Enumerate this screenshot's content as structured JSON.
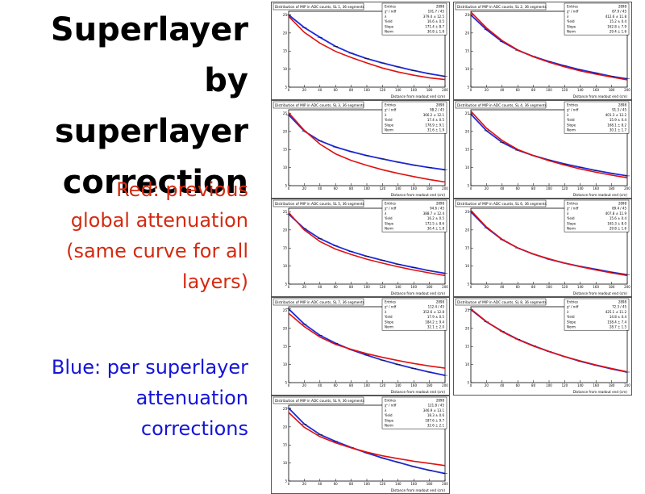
{
  "slide": {
    "title": "Superlayer by\nsuperlayer\ncorrection",
    "red_note": "Red: previous\nglobal attenuation\n(same curve for all\nlayers)",
    "blue_note": "Blue: per superlayer\nattenuation\ncorrections"
  },
  "colors": {
    "data_series": "#1f2bd6",
    "global_curve": "#e01010",
    "title_text": "#000000",
    "red_text": "#d42a10",
    "blue_text": "#1414d8"
  },
  "chart_data": [
    {
      "type": "line",
      "title": "Distribution of MIP in ADC counts, SL 1, 36 segments",
      "xlabel": "Distance from readout end (cm)",
      "stats": [
        [
          "Entries",
          "2898"
        ],
        [
          "χ² / ndf",
          "101.7 / 45"
        ],
        [
          "λ",
          "379.4 ± 12.5"
        ],
        [
          "Yield",
          "16.6 ± 0.5"
        ],
        [
          "Slope",
          "171.4 ± 8.7"
        ],
        [
          "Norm",
          "30.8 ± 1.8"
        ]
      ],
      "series": [
        {
          "name": "blue",
          "x": [
            0,
            20,
            40,
            60,
            80,
            100,
            120,
            140,
            160,
            180,
            200
          ],
          "y": [
            25,
            21.5,
            18.8,
            16.3,
            14.4,
            12.9,
            11.7,
            10.6,
            9.6,
            8.7,
            8.0
          ]
        },
        {
          "name": "red",
          "x": [
            0,
            20,
            40,
            60,
            80,
            100,
            120,
            140,
            160,
            180,
            200
          ],
          "y": [
            24.6,
            20.2,
            17.2,
            14.9,
            13.2,
            11.7,
            10.3,
            9.2,
            8.3,
            7.6,
            7.1
          ]
        }
      ]
    },
    {
      "type": "line",
      "title": "Distribution of MIP in ADC counts, SL 2, 36 segments",
      "xlabel": "Distance from readout end (cm)",
      "stats": [
        [
          "Entries",
          "2898"
        ],
        [
          "χ² / ndf",
          "87.9 / 45"
        ],
        [
          "λ",
          "412.6 ± 11.8"
        ],
        [
          "Yield",
          "15.2 ± 0.4"
        ],
        [
          "Slope",
          "162.8 ± 7.9"
        ],
        [
          "Norm",
          "29.4 ± 1.6"
        ]
      ],
      "series": [
        {
          "name": "blue",
          "x": [
            0,
            20,
            40,
            60,
            80,
            100,
            120,
            140,
            160,
            180,
            200
          ],
          "y": [
            25,
            20.9,
            17.6,
            15.2,
            13.5,
            12.1,
            10.9,
            9.8,
            8.9,
            8.0,
            7.3
          ]
        },
        {
          "name": "red",
          "x": [
            0,
            20,
            40,
            60,
            80,
            100,
            120,
            140,
            160,
            180,
            200
          ],
          "y": [
            25.8,
            21.4,
            17.9,
            15.3,
            13.4,
            11.9,
            10.6,
            9.5,
            8.6,
            7.8,
            7.0
          ]
        }
      ]
    },
    {
      "type": "line",
      "title": "Distribution of MIP in ADC counts, SL 3, 36 segments",
      "xlabel": "Distance from readout end (cm)",
      "stats": [
        [
          "Entries",
          "2898"
        ],
        [
          "χ² / ndf",
          "98.2 / 45"
        ],
        [
          "λ",
          "366.2 ± 12.1"
        ],
        [
          "Yield",
          "17.4 ± 0.5"
        ],
        [
          "Slope",
          "178.9 ± 9.1"
        ],
        [
          "Norm",
          "31.6 ± 1.9"
        ]
      ],
      "series": [
        {
          "name": "blue",
          "x": [
            0,
            20,
            40,
            60,
            80,
            100,
            120,
            140,
            160,
            180,
            200
          ],
          "y": [
            24.6,
            20.1,
            17.4,
            15.7,
            14.4,
            13.3,
            12.4,
            11.5,
            10.7,
            10.0,
            9.4
          ]
        },
        {
          "name": "red",
          "x": [
            0,
            20,
            40,
            60,
            80,
            100,
            120,
            140,
            160,
            180,
            200
          ],
          "y": [
            25.2,
            20.3,
            16.5,
            13.8,
            12.0,
            10.6,
            9.4,
            8.4,
            7.5,
            6.7,
            6.0
          ]
        }
      ]
    },
    {
      "type": "line",
      "title": "Distribution of MIP in ADC counts, SL 4, 36 segments",
      "xlabel": "Distance from readout end (cm)",
      "stats": [
        [
          "Entries",
          "2898"
        ],
        [
          "χ² / ndf",
          "91.3 / 45"
        ],
        [
          "λ",
          "401.3 ± 12.2"
        ],
        [
          "Yield",
          "15.9 ± 0.4"
        ],
        [
          "Slope",
          "168.1 ± 8.2"
        ],
        [
          "Norm",
          "30.1 ± 1.7"
        ]
      ],
      "series": [
        {
          "name": "blue",
          "x": [
            0,
            20,
            40,
            60,
            80,
            100,
            120,
            140,
            160,
            180,
            200
          ],
          "y": [
            24.8,
            20.2,
            17.0,
            14.8,
            13.3,
            12.1,
            11.0,
            10.1,
            9.2,
            8.4,
            7.7
          ]
        },
        {
          "name": "red",
          "x": [
            0,
            20,
            40,
            60,
            80,
            100,
            120,
            140,
            160,
            180,
            200
          ],
          "y": [
            25.6,
            20.9,
            17.5,
            15.0,
            13.3,
            11.9,
            10.7,
            9.6,
            8.7,
            7.9,
            7.2
          ]
        }
      ]
    },
    {
      "type": "line",
      "title": "Distribution of MIP in ADC counts, SL 5, 36 segments",
      "xlabel": "Distance from readout end (cm)",
      "stats": [
        [
          "Entries",
          "2898"
        ],
        [
          "χ² / ndf",
          "94.6 / 45"
        ],
        [
          "λ",
          "388.7 ± 12.4"
        ],
        [
          "Yield",
          "16.2 ± 0.5"
        ],
        [
          "Slope",
          "172.5 ± 8.6"
        ],
        [
          "Norm",
          "30.4 ± 1.8"
        ]
      ],
      "series": [
        {
          "name": "blue",
          "x": [
            0,
            20,
            40,
            60,
            80,
            100,
            120,
            140,
            160,
            180,
            200
          ],
          "y": [
            24.4,
            20.4,
            17.6,
            15.6,
            14.0,
            12.7,
            11.6,
            10.5,
            9.6,
            8.7,
            8.0
          ]
        },
        {
          "name": "red",
          "x": [
            0,
            20,
            40,
            60,
            80,
            100,
            120,
            140,
            160,
            180,
            200
          ],
          "y": [
            24.8,
            20.0,
            16.8,
            14.7,
            13.2,
            11.9,
            10.8,
            9.8,
            8.9,
            8.1,
            7.4
          ]
        }
      ]
    },
    {
      "type": "line",
      "title": "Distribution of MIP in ADC counts, SL 6, 36 segments",
      "xlabel": "Distance from readout end (cm)",
      "stats": [
        [
          "Entries",
          "2898"
        ],
        [
          "χ² / ndf",
          "89.4 / 45"
        ],
        [
          "λ",
          "407.8 ± 11.9"
        ],
        [
          "Yield",
          "15.6 ± 0.4"
        ],
        [
          "Slope",
          "165.3 ± 8.0"
        ],
        [
          "Norm",
          "29.8 ± 1.6"
        ]
      ],
      "series": [
        {
          "name": "blue",
          "x": [
            0,
            20,
            40,
            60,
            80,
            100,
            120,
            140,
            160,
            180,
            200
          ],
          "y": [
            25.0,
            20.6,
            17.3,
            15.0,
            13.3,
            11.9,
            10.8,
            9.9,
            9.1,
            8.3,
            7.6
          ]
        },
        {
          "name": "red",
          "x": [
            0,
            20,
            40,
            60,
            80,
            100,
            120,
            140,
            160,
            180,
            200
          ],
          "y": [
            25.4,
            20.8,
            17.4,
            15.0,
            13.3,
            12.0,
            10.8,
            9.8,
            8.9,
            8.1,
            7.4
          ]
        }
      ]
    },
    {
      "type": "line",
      "title": "Distribution of MIP in ADC counts, SL 7, 36 segments",
      "xlabel": "Distance from readout end (cm)",
      "stats": [
        [
          "Entries",
          "2898"
        ],
        [
          "χ² / ndf",
          "112.4 / 45"
        ],
        [
          "λ",
          "352.6 ± 12.8"
        ],
        [
          "Yield",
          "17.9 ± 0.5"
        ],
        [
          "Slope",
          "184.2 ± 9.4"
        ],
        [
          "Norm",
          "32.1 ± 2.0"
        ]
      ],
      "series": [
        {
          "name": "blue",
          "x": [
            0,
            20,
            40,
            60,
            80,
            100,
            120,
            140,
            160,
            180,
            200
          ],
          "y": [
            25.4,
            21.2,
            18.1,
            15.9,
            14.1,
            12.6,
            11.2,
            10.0,
            8.9,
            7.9,
            7.0
          ]
        },
        {
          "name": "red",
          "x": [
            0,
            20,
            40,
            60,
            80,
            100,
            120,
            140,
            160,
            180,
            200
          ],
          "y": [
            24.2,
            20.5,
            17.6,
            15.6,
            14.2,
            13.0,
            12.0,
            11.1,
            10.3,
            9.6,
            9.0
          ]
        }
      ]
    },
    {
      "type": "line",
      "title": "Distribution of MIP in ADC counts, SL 8, 36 segments",
      "xlabel": "Distance from readout end (cm)",
      "stats": [
        [
          "Entries",
          "2898"
        ],
        [
          "χ² / ndf",
          "72.3 / 45"
        ],
        [
          "λ",
          "425.1 ± 11.2"
        ],
        [
          "Yield",
          "14.8 ± 0.4"
        ],
        [
          "Slope",
          "158.4 ± 7.4"
        ],
        [
          "Norm",
          "28.7 ± 1.5"
        ]
      ],
      "series": [
        {
          "name": "blue",
          "x": [
            0,
            20,
            40,
            60,
            80,
            100,
            120,
            140,
            160,
            180,
            200
          ],
          "y": [
            25.2,
            21.8,
            19.2,
            17.0,
            15.2,
            13.6,
            12.2,
            10.9,
            9.8,
            8.8,
            7.9
          ]
        },
        {
          "name": "red",
          "x": [
            0,
            20,
            40,
            60,
            80,
            100,
            120,
            140,
            160,
            180,
            200
          ],
          "y": [
            25.4,
            21.9,
            19.1,
            16.9,
            15.1,
            13.6,
            12.2,
            11.0,
            9.9,
            8.9,
            8.0
          ]
        }
      ]
    },
    {
      "type": "line",
      "title": "Distribution of MIP in ADC counts, SL 9, 36 segments",
      "xlabel": "Distance from readout end (cm)",
      "stats": [
        [
          "Entries",
          "2898"
        ],
        [
          "χ² / ndf",
          "121.8 / 45"
        ],
        [
          "λ",
          "346.9 ± 13.1"
        ],
        [
          "Yield",
          "18.3 ± 0.6"
        ],
        [
          "Slope",
          "187.6 ± 9.7"
        ],
        [
          "Norm",
          "32.6 ± 2.1"
        ]
      ],
      "series": [
        {
          "name": "blue",
          "x": [
            0,
            20,
            40,
            60,
            80,
            100,
            120,
            140,
            160,
            180,
            200
          ],
          "y": [
            25.2,
            20.8,
            17.9,
            16.0,
            14.3,
            12.8,
            11.4,
            10.2,
            9.0,
            8.0,
            7.1
          ]
        },
        {
          "name": "red",
          "x": [
            0,
            20,
            40,
            60,
            80,
            100,
            120,
            140,
            160,
            180,
            200
          ],
          "y": [
            24.0,
            19.9,
            17.3,
            15.6,
            14.2,
            13.0,
            12.0,
            11.2,
            10.5,
            9.9,
            9.3
          ]
        }
      ]
    }
  ]
}
